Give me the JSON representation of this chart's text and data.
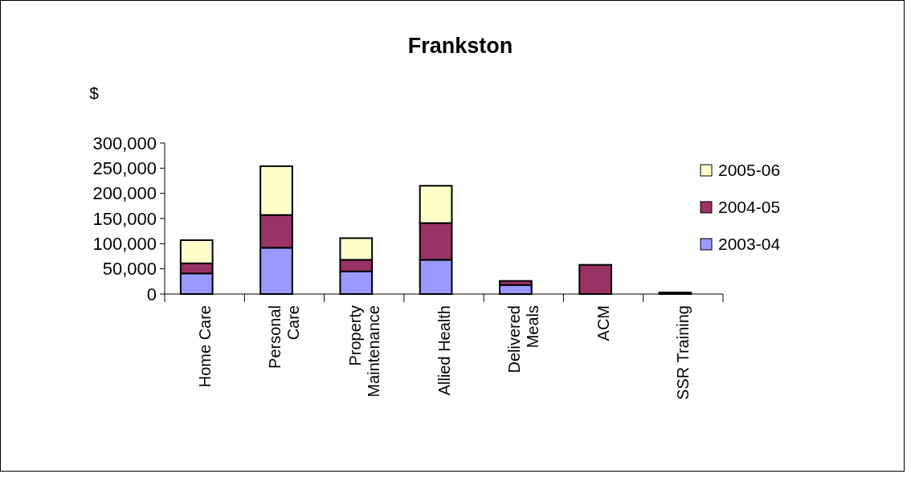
{
  "chart_data": {
    "type": "bar",
    "title": "Frankston",
    "ylabel": "$",
    "stacked": true,
    "categories": [
      "Home Care",
      "Personal\nCare",
      "Property\nMaintenance",
      "Allied Health",
      "Delivered\nMeals",
      "ACM",
      "SSR Training"
    ],
    "series": [
      {
        "name": "2003-04",
        "color": "#9999ff",
        "values": [
          41000,
          92000,
          45000,
          68000,
          18000,
          null,
          null
        ]
      },
      {
        "name": "2004-05",
        "color": "#993366",
        "values": [
          20000,
          65000,
          23000,
          73000,
          8000,
          58000,
          3000
        ]
      },
      {
        "name": "2005-06",
        "color": "#ffffcc",
        "values": [
          46000,
          97000,
          43000,
          74000,
          null,
          null,
          null
        ]
      }
    ],
    "ylim": [
      0,
      300000
    ],
    "yticks": [
      {
        "value": 0,
        "label": "0"
      },
      {
        "value": 50000,
        "label": "50,000"
      },
      {
        "value": 100000,
        "label": "100,000"
      },
      {
        "value": 150000,
        "label": "150,000"
      },
      {
        "value": 200000,
        "label": "200,000"
      },
      {
        "value": 250000,
        "label": "250,000"
      },
      {
        "value": 300000,
        "label": "300,000"
      }
    ],
    "legend": "right",
    "grid": false
  }
}
